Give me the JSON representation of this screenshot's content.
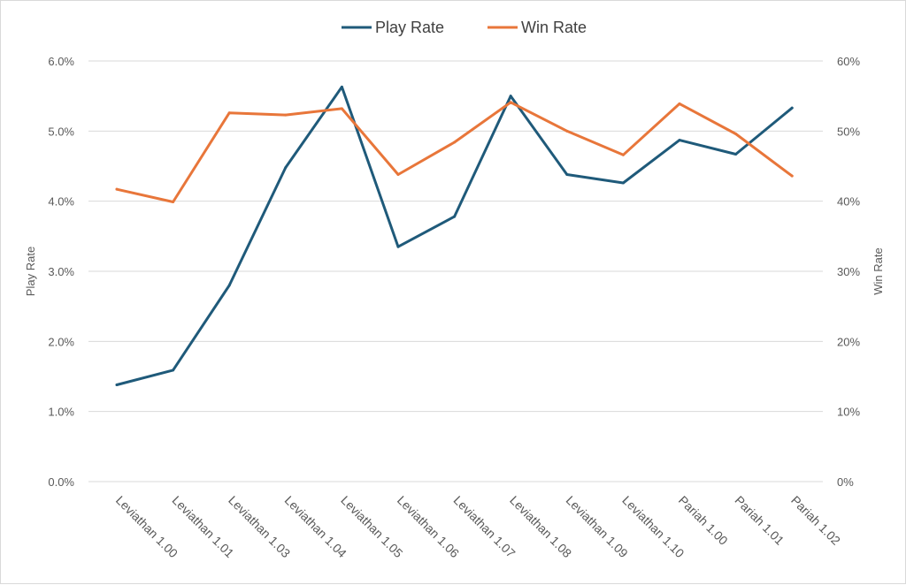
{
  "chart_data": {
    "type": "line",
    "title": "",
    "categories": [
      "Leviathan 1.00",
      "Leviathan 1.01",
      "Leviathan 1.03",
      "Leviathan 1.04",
      "Leviathan 1.05",
      "Leviathan 1.06",
      "Leviathan 1.07",
      "Leviathan 1.08",
      "Leviathan 1.09",
      "Leviathan 1.10",
      "Pariah 1.00",
      "Pariah 1.01",
      "Pariah 1.02"
    ],
    "series": [
      {
        "name": "Play Rate",
        "axis": "left",
        "color": "#1f5a7a",
        "values": [
          1.38,
          1.59,
          2.8,
          4.48,
          5.63,
          3.35,
          3.78,
          5.5,
          4.38,
          4.26,
          4.87,
          4.67,
          5.33
        ]
      },
      {
        "name": "Win Rate",
        "axis": "right",
        "color": "#e8763a",
        "values": [
          41.7,
          39.9,
          52.6,
          52.3,
          53.2,
          43.8,
          48.4,
          54.1,
          50.0,
          46.6,
          53.9,
          49.6,
          43.6
        ]
      }
    ],
    "y_left": {
      "label": "Play Rate",
      "min": 0,
      "max": 6,
      "step": 1,
      "tick_labels": [
        "0.0%",
        "1.0%",
        "2.0%",
        "3.0%",
        "4.0%",
        "5.0%",
        "6.0%"
      ]
    },
    "y_right": {
      "label": "Win Rate",
      "min": 0,
      "max": 60,
      "step": 10,
      "tick_labels": [
        "0%",
        "10%",
        "20%",
        "30%",
        "40%",
        "50%",
        "60%"
      ]
    },
    "grid": true,
    "legend_position": "top-center"
  }
}
